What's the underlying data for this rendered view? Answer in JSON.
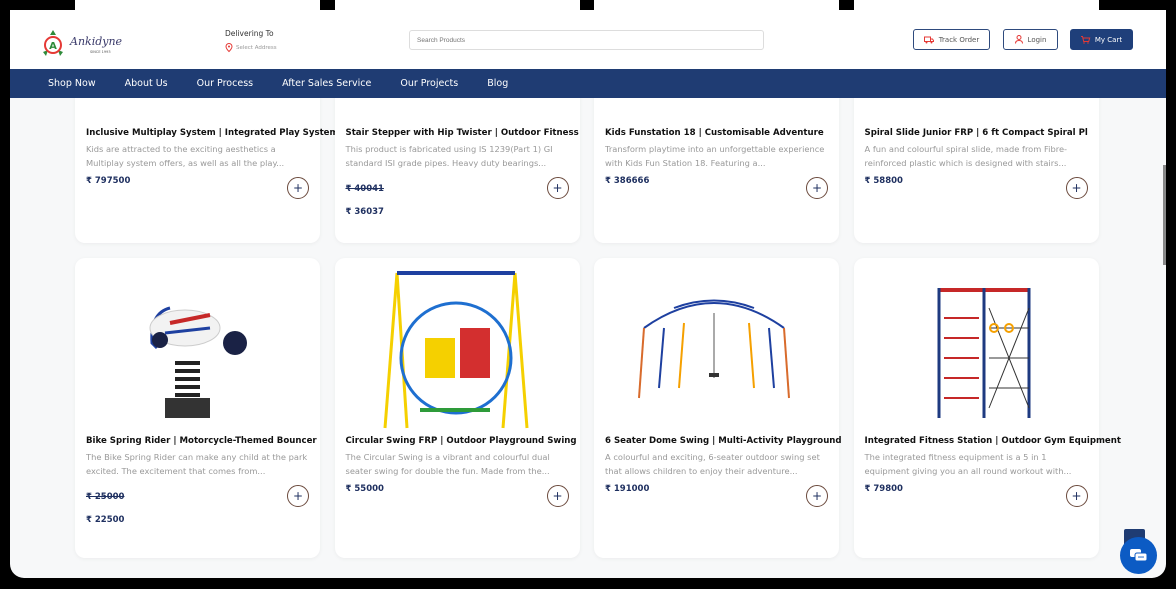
{
  "brand": {
    "name": "Ankidyne",
    "tagline": "SINCE 1993"
  },
  "delivery": {
    "label": "Delivering To",
    "address": "Select Address"
  },
  "search": {
    "placeholder": "Search Products"
  },
  "header_buttons": {
    "track": "Track Order",
    "login": "Login",
    "cart": "My Cart"
  },
  "nav": [
    "Shop Now",
    "About Us",
    "Our Process",
    "After Sales Service",
    "Our Projects",
    "Blog"
  ],
  "colors": {
    "primary": "#1f3c73",
    "accent": "#e53935"
  },
  "products_row1": [
    {
      "title": "Inclusive Multiplay System | Integrated Play System",
      "desc": "Kids are attracted to the exciting aesthetics a Multiplay system offers, as well as all the play...",
      "price": "₹ 797500",
      "old_price": null
    },
    {
      "title": "Stair Stepper with Hip Twister | Outdoor Fitness",
      "desc": "This product is fabricated using IS 1239(Part 1) GI standard ISI grade pipes. Heavy duty bearings...",
      "price": "₹ 36037",
      "old_price": "₹ 40041"
    },
    {
      "title": "Kids Funstation 18 | Customisable Adventure",
      "desc": "Transform playtime into an unforgettable experience with Kids Fun Station 18. Featuring a...",
      "price": "₹ 386666",
      "old_price": null
    },
    {
      "title": "Spiral Slide Junior FRP | 6 ft Compact Spiral Pl",
      "desc": "A fun and colourful spiral slide, made from Fibre-reinforced plastic which is designed with stairs...",
      "price": "₹ 58800",
      "old_price": null
    }
  ],
  "products_row2": [
    {
      "title": "Bike Spring Rider | Motorcycle-Themed Bouncer",
      "desc": "The Bike Spring Rider can make any child at the park excited. The excitement that comes from...",
      "price": "₹ 22500",
      "old_price": "₹ 25000",
      "image": "bike-spring-rider"
    },
    {
      "title": "Circular Swing FRP | Outdoor Playground Swing",
      "desc": "The Circular Swing is a vibrant and colourful dual seater swing for double the fun. Made from the...",
      "price": "₹ 55000",
      "old_price": null,
      "image": "circular-swing"
    },
    {
      "title": "6 Seater Dome Swing | Multi-Activity Playground",
      "desc": "A colourful and exciting, 6-seater outdoor swing set that allows children to enjoy their adventure...",
      "price": "₹ 191000",
      "old_price": null,
      "image": "dome-swing"
    },
    {
      "title": "Integrated Fitness Station | Outdoor Gym Equipment",
      "desc": "The integrated fitness equipment is a 5 in 1 equipment giving you an all round workout with...",
      "price": "₹ 79800",
      "old_price": null,
      "image": "fitness-station"
    }
  ]
}
